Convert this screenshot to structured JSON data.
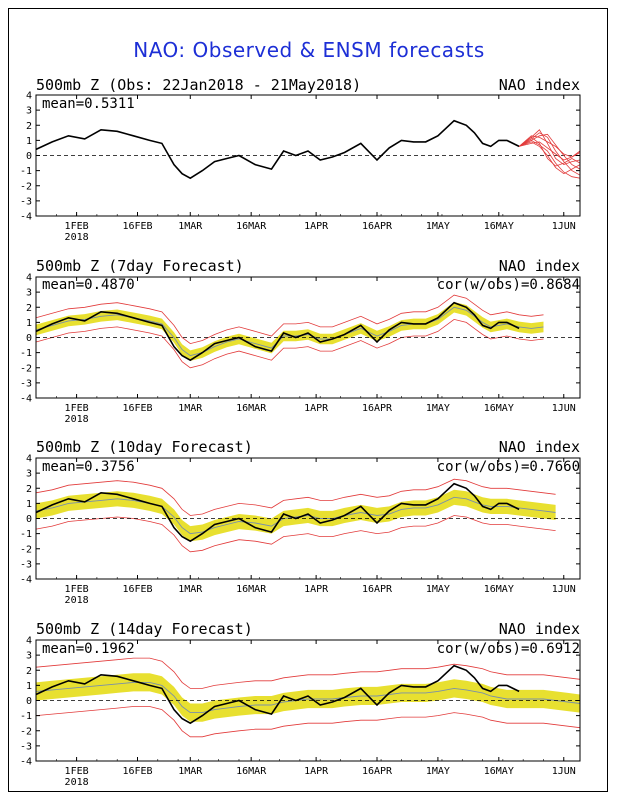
{
  "title": "NAO: Observed & ENSM forecasts",
  "colors": {
    "title": "#1d2fd6",
    "observed": "#000000",
    "member": "#e23b3b",
    "spread_dark": "#f0a020",
    "spread_light": "#e8e030",
    "mean_line": "#7a90a8"
  },
  "x_ticks": [
    {
      "day": 10,
      "label": "1FEB",
      "sub": "2018"
    },
    {
      "day": 25,
      "label": "16FEB",
      "sub": ""
    },
    {
      "day": 38,
      "label": "1MAR",
      "sub": ""
    },
    {
      "day": 53,
      "label": "16MAR",
      "sub": ""
    },
    {
      "day": 69,
      "label": "1APR",
      "sub": ""
    },
    {
      "day": 84,
      "label": "16APR",
      "sub": ""
    },
    {
      "day": 99,
      "label": "1MAY",
      "sub": ""
    },
    {
      "day": 114,
      "label": "16MAY",
      "sub": ""
    },
    {
      "day": 130,
      "label": "1JUN",
      "sub": ""
    }
  ],
  "chart_data": [
    {
      "type": "line",
      "title": "500mb Z (Obs: 22Jan2018 - 21May2018)",
      "right_label": "NAO index",
      "stat_left": "mean=0.5311",
      "stat_right": "",
      "xlim": [
        0,
        134
      ],
      "ylim": [
        -4,
        4
      ],
      "yticks": [
        "4",
        "3",
        "2",
        "1",
        "0",
        "-1",
        "-2",
        "-3",
        "-4"
      ],
      "series": [
        {
          "role": "observed",
          "x": [
            0,
            4,
            8,
            12,
            16,
            20,
            24,
            28,
            31,
            34,
            36,
            38,
            41,
            44,
            47,
            50,
            54,
            58,
            61,
            64,
            67,
            70,
            73,
            76,
            80,
            84,
            87,
            90,
            93,
            96,
            99,
            103,
            106,
            108,
            110,
            112,
            114,
            116,
            119
          ],
          "y": [
            0.4,
            0.9,
            1.3,
            1.1,
            1.7,
            1.6,
            1.3,
            1.0,
            0.8,
            -0.6,
            -1.2,
            -1.5,
            -1.0,
            -0.4,
            -0.2,
            0.0,
            -0.6,
            -0.9,
            0.3,
            0.0,
            0.3,
            -0.3,
            -0.1,
            0.2,
            0.8,
            -0.3,
            0.5,
            1.0,
            0.9,
            0.9,
            1.3,
            2.3,
            2.0,
            1.5,
            0.8,
            0.6,
            1.0,
            1.0,
            0.6
          ]
        },
        {
          "role": "members",
          "x": [
            119,
            122,
            124,
            126,
            128,
            130,
            132,
            134
          ],
          "lines": [
            [
              0.6,
              1.2,
              1.7,
              0.8,
              -0.2,
              -0.6,
              -0.4,
              -0.3
            ],
            [
              0.6,
              1.0,
              0.7,
              0.3,
              -0.5,
              -1.1,
              -1.4,
              -1.5
            ],
            [
              0.6,
              1.3,
              1.2,
              0.9,
              0.6,
              0.1,
              -0.1,
              0.2
            ],
            [
              0.6,
              0.9,
              0.6,
              0.0,
              -0.8,
              -1.2,
              -0.9,
              -0.6
            ],
            [
              0.6,
              1.1,
              1.5,
              1.2,
              0.3,
              -0.4,
              -1.0,
              -1.3
            ],
            [
              0.6,
              0.8,
              0.9,
              0.5,
              0.1,
              -0.3,
              -0.1,
              0.3
            ],
            [
              0.6,
              1.2,
              0.8,
              -0.2,
              -0.7,
              -0.5,
              -0.2,
              -0.5
            ],
            [
              0.6,
              1.0,
              1.3,
              1.4,
              0.7,
              0.0,
              -0.6,
              -0.9
            ]
          ]
        }
      ]
    },
    {
      "type": "line",
      "title": "500mb Z (7day Forecast)",
      "right_label": "NAO index",
      "stat_left": "mean=0.4870",
      "stat_right": "cor(w/obs)=0.8684",
      "xlim": [
        0,
        134
      ],
      "ylim": [
        -4,
        4
      ],
      "yticks": [
        "4",
        "3",
        "2",
        "1",
        "0",
        "-1",
        "-2",
        "-3",
        "-4"
      ],
      "series": [
        {
          "role": "observed",
          "x": [
            0,
            4,
            8,
            12,
            16,
            20,
            24,
            28,
            31,
            34,
            36,
            38,
            41,
            44,
            47,
            50,
            54,
            58,
            61,
            64,
            67,
            70,
            73,
            76,
            80,
            84,
            87,
            90,
            93,
            96,
            99,
            103,
            106,
            108,
            110,
            112,
            114,
            116,
            119
          ],
          "y": [
            0.4,
            0.9,
            1.3,
            1.1,
            1.7,
            1.6,
            1.3,
            1.0,
            0.8,
            -0.6,
            -1.2,
            -1.5,
            -1.0,
            -0.4,
            -0.2,
            0.0,
            -0.6,
            -0.9,
            0.3,
            0.0,
            0.3,
            -0.3,
            -0.1,
            0.2,
            0.8,
            -0.3,
            0.5,
            1.0,
            0.9,
            0.9,
            1.3,
            2.3,
            2.0,
            1.5,
            0.8,
            0.6,
            1.0,
            1.0,
            0.6
          ]
        },
        {
          "role": "forecast",
          "x": [
            0,
            4,
            8,
            12,
            16,
            20,
            24,
            28,
            31,
            34,
            36,
            38,
            41,
            44,
            47,
            50,
            54,
            58,
            61,
            64,
            67,
            70,
            73,
            76,
            80,
            84,
            87,
            90,
            93,
            96,
            99,
            103,
            106,
            108,
            110,
            112,
            114,
            116,
            119,
            122,
            125
          ],
          "mean": [
            0.5,
            0.8,
            1.1,
            1.2,
            1.4,
            1.5,
            1.3,
            1.1,
            0.9,
            0.0,
            -0.8,
            -1.2,
            -1.0,
            -0.6,
            -0.3,
            -0.1,
            -0.4,
            -0.7,
            0.1,
            0.1,
            0.2,
            -0.1,
            -0.1,
            0.2,
            0.6,
            0.1,
            0.4,
            0.8,
            0.9,
            0.9,
            1.2,
            2.0,
            1.8,
            1.4,
            1.0,
            0.7,
            0.8,
            0.9,
            0.7,
            0.6,
            0.7
          ],
          "inner": 0.35,
          "outer": 0.8
        }
      ]
    },
    {
      "type": "line",
      "title": "500mb Z (10day Forecast)",
      "right_label": "NAO index",
      "stat_left": "mean=0.3756",
      "stat_right": "cor(w/obs)=0.7660",
      "xlim": [
        0,
        134
      ],
      "ylim": [
        -4,
        4
      ],
      "yticks": [
        "4",
        "3",
        "2",
        "1",
        "0",
        "-1",
        "-2",
        "-3",
        "-4"
      ],
      "series": [
        {
          "role": "observed",
          "x": [
            0,
            4,
            8,
            12,
            16,
            20,
            24,
            28,
            31,
            34,
            36,
            38,
            41,
            44,
            47,
            50,
            54,
            58,
            61,
            64,
            67,
            70,
            73,
            76,
            80,
            84,
            87,
            90,
            93,
            96,
            99,
            103,
            106,
            108,
            110,
            112,
            114,
            116,
            119
          ],
          "y": [
            0.4,
            0.9,
            1.3,
            1.1,
            1.7,
            1.6,
            1.3,
            1.0,
            0.8,
            -0.6,
            -1.2,
            -1.5,
            -1.0,
            -0.4,
            -0.2,
            0.0,
            -0.6,
            -0.9,
            0.3,
            0.0,
            0.3,
            -0.3,
            -0.1,
            0.2,
            0.8,
            -0.3,
            0.5,
            1.0,
            0.9,
            0.9,
            1.3,
            2.3,
            2.0,
            1.5,
            0.8,
            0.6,
            1.0,
            1.0,
            0.6
          ]
        },
        {
          "role": "forecast",
          "x": [
            0,
            4,
            8,
            12,
            16,
            20,
            24,
            28,
            31,
            34,
            36,
            38,
            41,
            44,
            47,
            50,
            54,
            58,
            61,
            64,
            67,
            70,
            73,
            76,
            80,
            84,
            87,
            90,
            93,
            96,
            99,
            103,
            106,
            108,
            110,
            112,
            114,
            116,
            119,
            122,
            125,
            128
          ],
          "mean": [
            0.5,
            0.7,
            1.0,
            1.1,
            1.2,
            1.3,
            1.2,
            1.0,
            0.8,
            0.1,
            -0.6,
            -1.0,
            -0.9,
            -0.6,
            -0.4,
            -0.2,
            -0.3,
            -0.5,
            0.0,
            0.1,
            0.2,
            0.0,
            0.0,
            0.2,
            0.4,
            0.2,
            0.3,
            0.6,
            0.7,
            0.7,
            0.9,
            1.4,
            1.3,
            1.1,
            0.9,
            0.8,
            0.8,
            0.8,
            0.7,
            0.6,
            0.5,
            0.4
          ],
          "inner": 0.5,
          "outer": 1.2
        }
      ]
    },
    {
      "type": "line",
      "title": "500mb Z (14day Forecast)",
      "right_label": "NAO index",
      "stat_left": "mean=0.1962",
      "stat_right": "cor(w/obs)=0.6912",
      "xlim": [
        0,
        134
      ],
      "ylim": [
        -4,
        4
      ],
      "yticks": [
        "4",
        "3",
        "2",
        "1",
        "0",
        "-1",
        "-2",
        "-3",
        "-4"
      ],
      "series": [
        {
          "role": "observed",
          "x": [
            0,
            4,
            8,
            12,
            16,
            20,
            24,
            28,
            31,
            34,
            36,
            38,
            41,
            44,
            47,
            50,
            54,
            58,
            61,
            64,
            67,
            70,
            73,
            76,
            80,
            84,
            87,
            90,
            93,
            96,
            99,
            103,
            106,
            108,
            110,
            112,
            114,
            116,
            119
          ],
          "y": [
            0.4,
            0.9,
            1.3,
            1.1,
            1.7,
            1.6,
            1.3,
            1.0,
            0.8,
            -0.6,
            -1.2,
            -1.5,
            -1.0,
            -0.4,
            -0.2,
            0.0,
            -0.6,
            -0.9,
            0.3,
            0.0,
            0.3,
            -0.3,
            -0.1,
            0.2,
            0.8,
            -0.3,
            0.5,
            1.0,
            0.9,
            0.9,
            1.3,
            2.3,
            2.0,
            1.5,
            0.8,
            0.6,
            1.0,
            1.0,
            0.6
          ]
        },
        {
          "role": "forecast",
          "x": [
            0,
            4,
            8,
            12,
            16,
            20,
            24,
            28,
            31,
            34,
            36,
            38,
            41,
            44,
            47,
            50,
            54,
            58,
            61,
            64,
            67,
            70,
            73,
            76,
            80,
            84,
            87,
            90,
            93,
            96,
            99,
            103,
            106,
            108,
            110,
            112,
            114,
            116,
            119,
            122,
            125,
            128,
            131,
            134
          ],
          "mean": [
            0.6,
            0.7,
            0.8,
            0.9,
            1.0,
            1.1,
            1.2,
            1.2,
            1.0,
            0.3,
            -0.4,
            -0.8,
            -0.8,
            -0.6,
            -0.5,
            -0.4,
            -0.3,
            -0.3,
            -0.1,
            0.0,
            0.1,
            0.1,
            0.1,
            0.2,
            0.3,
            0.3,
            0.4,
            0.5,
            0.5,
            0.5,
            0.6,
            0.8,
            0.7,
            0.6,
            0.5,
            0.3,
            0.2,
            0.1,
            0.1,
            0.1,
            0.1,
            0.0,
            -0.1,
            -0.2
          ],
          "inner": 0.6,
          "outer": 1.6
        }
      ]
    }
  ]
}
